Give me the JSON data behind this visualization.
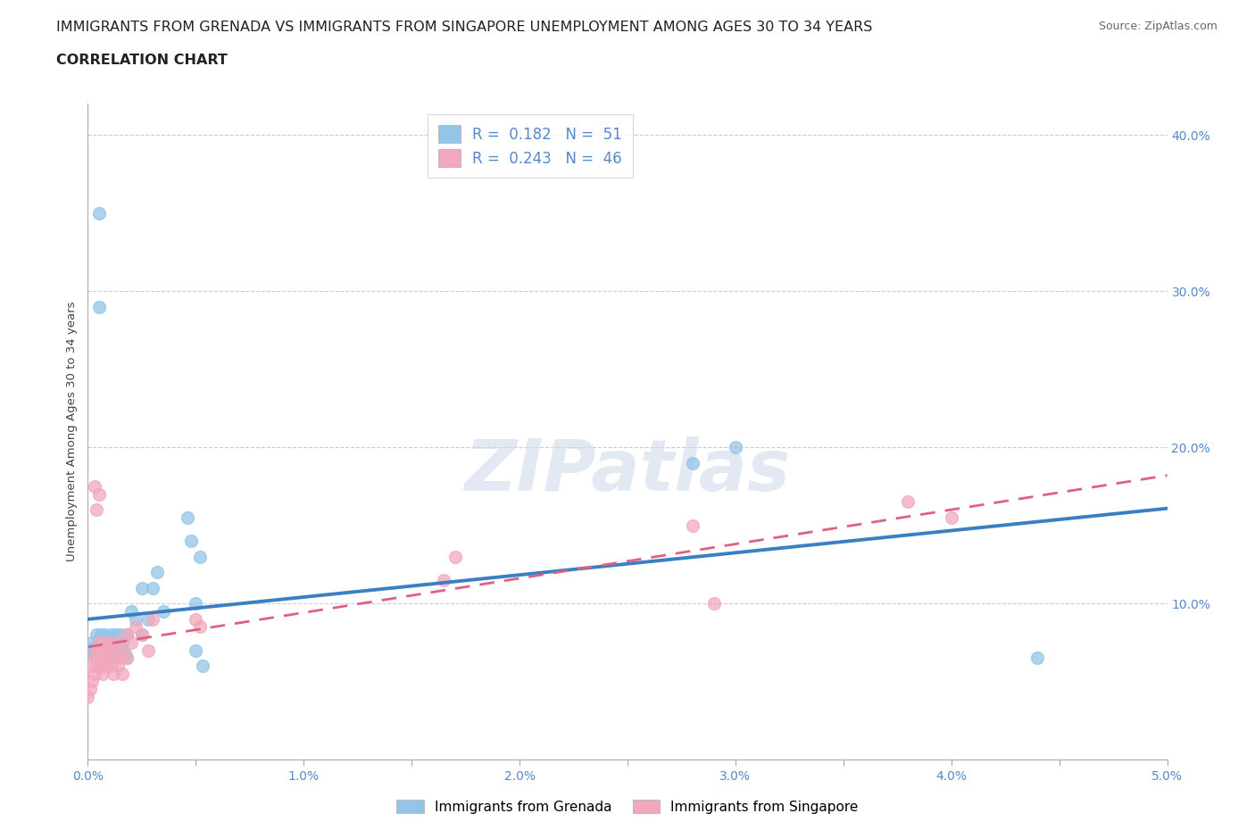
{
  "title_line1": "IMMIGRANTS FROM GRENADA VS IMMIGRANTS FROM SINGAPORE UNEMPLOYMENT AMONG AGES 30 TO 34 YEARS",
  "title_line2": "CORRELATION CHART",
  "source_text": "Source: ZipAtlas.com",
  "ylabel": "Unemployment Among Ages 30 to 34 years",
  "xlim": [
    0.0,
    0.05
  ],
  "ylim": [
    0.0,
    0.42
  ],
  "xticks": [
    0.0,
    0.005,
    0.01,
    0.015,
    0.02,
    0.025,
    0.03,
    0.035,
    0.04,
    0.045,
    0.05
  ],
  "xtick_labels": [
    "0.0%",
    "",
    "1.0%",
    "",
    "2.0%",
    "",
    "3.0%",
    "",
    "4.0%",
    "",
    "5.0%"
  ],
  "yticks": [
    0.0,
    0.1,
    0.2,
    0.3,
    0.4
  ],
  "ytick_labels": [
    "",
    "10.0%",
    "20.0%",
    "30.0%",
    "40.0%"
  ],
  "grenada_color": "#92C5E8",
  "singapore_color": "#F2A8BC",
  "grenada_line_color": "#3A7FC1",
  "singapore_line_color": "#E06080",
  "grenada_R": 0.182,
  "grenada_N": 51,
  "singapore_R": 0.243,
  "singapore_N": 46,
  "watermark": "ZIPatlas",
  "legend_label_grenada": "Immigrants from Grenada",
  "legend_label_singapore": "Immigrants from Singapore",
  "title_fontsize": 11.5,
  "subtitle_fontsize": 11.5,
  "axis_label_fontsize": 9.5,
  "tick_fontsize": 10,
  "tick_color": "#5588CC",
  "background_color": "#ffffff",
  "grid_color": "#cccccc",
  "grenada_x": [
    0.0,
    0.0002,
    0.0003,
    0.0003,
    0.0004,
    0.0004,
    0.0005,
    0.0005,
    0.0005,
    0.0006,
    0.0006,
    0.0007,
    0.0007,
    0.0008,
    0.0008,
    0.0009,
    0.0009,
    0.001,
    0.001,
    0.0011,
    0.0011,
    0.0012,
    0.0012,
    0.0013,
    0.0013,
    0.0014,
    0.0015,
    0.0015,
    0.0016,
    0.0017,
    0.0018,
    0.0018,
    0.002,
    0.0022,
    0.0025,
    0.0025,
    0.0028,
    0.003,
    0.0032,
    0.0035,
    0.005,
    0.0052,
    0.005,
    0.0053,
    0.028,
    0.03,
    0.044,
    0.0048,
    0.0046,
    0.0005,
    0.0005
  ],
  "grenada_y": [
    0.07,
    0.075,
    0.068,
    0.072,
    0.065,
    0.08,
    0.07,
    0.075,
    0.06,
    0.08,
    0.065,
    0.075,
    0.068,
    0.08,
    0.065,
    0.072,
    0.068,
    0.078,
    0.065,
    0.08,
    0.07,
    0.075,
    0.068,
    0.08,
    0.065,
    0.075,
    0.07,
    0.08,
    0.075,
    0.068,
    0.08,
    0.065,
    0.095,
    0.09,
    0.08,
    0.11,
    0.09,
    0.11,
    0.12,
    0.095,
    0.1,
    0.13,
    0.07,
    0.06,
    0.19,
    0.2,
    0.065,
    0.14,
    0.155,
    0.35,
    0.29
  ],
  "singapore_x": [
    0.0,
    0.0001,
    0.0002,
    0.0002,
    0.0003,
    0.0003,
    0.0004,
    0.0004,
    0.0005,
    0.0005,
    0.0006,
    0.0006,
    0.0007,
    0.0007,
    0.0008,
    0.0008,
    0.0009,
    0.001,
    0.001,
    0.0011,
    0.0012,
    0.0012,
    0.0013,
    0.0014,
    0.0014,
    0.0015,
    0.0016,
    0.0016,
    0.0018,
    0.0018,
    0.002,
    0.0022,
    0.0025,
    0.0028,
    0.003,
    0.005,
    0.0052,
    0.0165,
    0.017,
    0.028,
    0.029,
    0.038,
    0.04,
    0.0003,
    0.0004,
    0.0005
  ],
  "singapore_y": [
    0.04,
    0.045,
    0.05,
    0.06,
    0.065,
    0.055,
    0.07,
    0.06,
    0.065,
    0.075,
    0.06,
    0.07,
    0.055,
    0.065,
    0.075,
    0.06,
    0.07,
    0.065,
    0.075,
    0.06,
    0.07,
    0.055,
    0.065,
    0.075,
    0.06,
    0.065,
    0.07,
    0.055,
    0.065,
    0.08,
    0.075,
    0.085,
    0.08,
    0.07,
    0.09,
    0.09,
    0.085,
    0.115,
    0.13,
    0.15,
    0.1,
    0.165,
    0.155,
    0.175,
    0.16,
    0.17
  ]
}
